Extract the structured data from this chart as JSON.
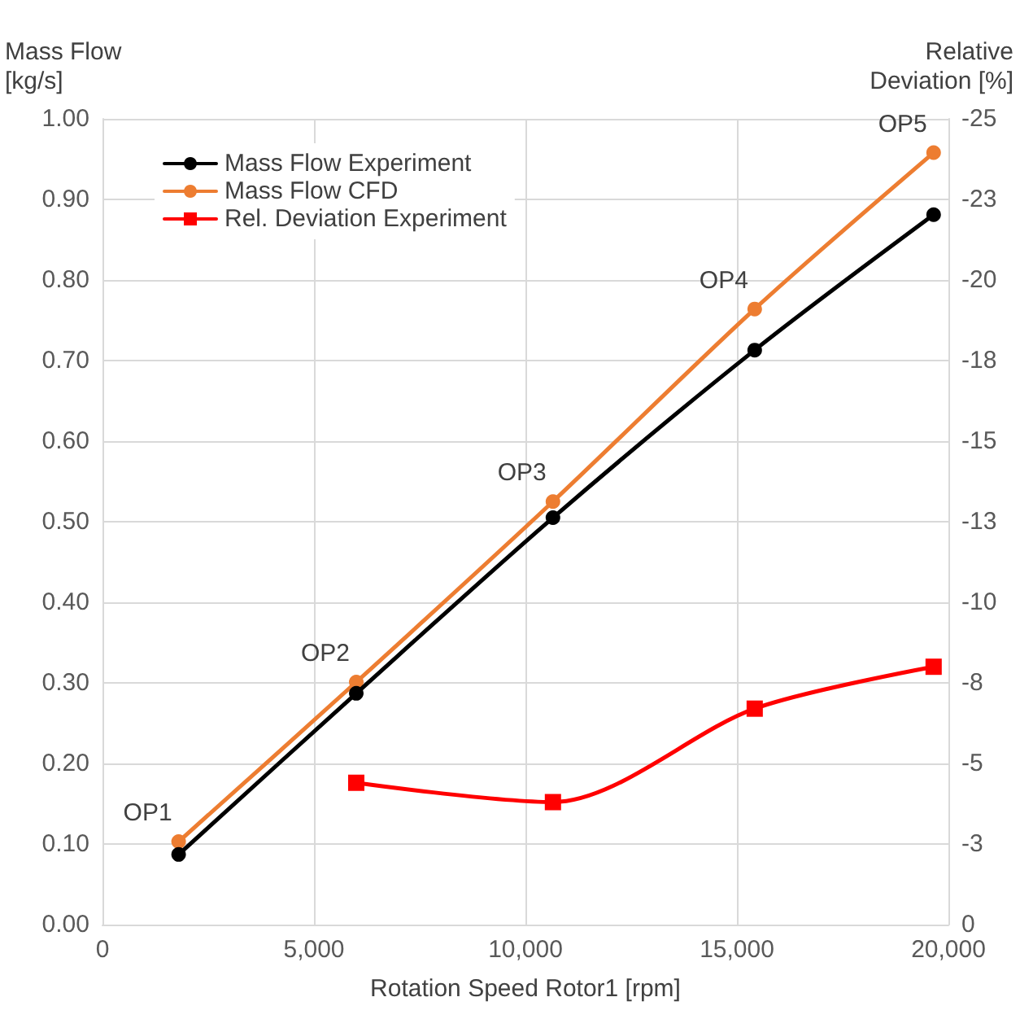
{
  "chart_data": {
    "type": "line",
    "xlabel": "Rotation Speed Rotor1 [rpm]",
    "ylabel": "Mass Flow\n[kg/s]",
    "y2label": "Relative\nDeviation [%]",
    "x": [
      1800,
      6000,
      10650,
      15420,
      19650
    ],
    "series": [
      {
        "name": "Mass Flow Experiment",
        "color": "#000000",
        "values": [
          0.087,
          0.287,
          0.505,
          0.713,
          0.881
        ]
      },
      {
        "name": "Mass Flow CFD",
        "color": "#ed7d31",
        "values": [
          0.103,
          0.301,
          0.525,
          0.764,
          0.958
        ]
      },
      {
        "name": "Rel. Deviation Experiment",
        "color": "#ff0000",
        "axis": "y2",
        "marker": "square",
        "x": [
          6000,
          10650,
          15420,
          19650
        ],
        "values": [
          -4.4,
          -3.8,
          -6.7,
          -8.0
        ]
      }
    ],
    "xlim": [
      0,
      20000
    ],
    "xticks": [
      {
        "value": 0,
        "label": "0"
      },
      {
        "value": 5000,
        "label": "5,000"
      },
      {
        "value": 10000,
        "label": "10,000"
      },
      {
        "value": 15000,
        "label": "15,000"
      },
      {
        "value": 20000,
        "label": "20,000"
      }
    ],
    "ylim": [
      0,
      1
    ],
    "yticks": [
      {
        "value": 0,
        "label": "0.00"
      },
      {
        "value": 0.1,
        "label": "0.10"
      },
      {
        "value": 0.2,
        "label": "0.20"
      },
      {
        "value": 0.3,
        "label": "0.30"
      },
      {
        "value": 0.4,
        "label": "0.40"
      },
      {
        "value": 0.5,
        "label": "0.50"
      },
      {
        "value": 0.6,
        "label": "0.60"
      },
      {
        "value": 0.7,
        "label": "0.70"
      },
      {
        "value": 0.8,
        "label": "0.80"
      },
      {
        "value": 0.9,
        "label": "0.90"
      },
      {
        "value": 1,
        "label": "1.00"
      }
    ],
    "y2lim": [
      0,
      -25
    ],
    "y2ticks": [
      0,
      {
        "value": -2.5,
        "label": "-3"
      },
      -5,
      {
        "value": -7.5,
        "label": "-8"
      },
      -10,
      {
        "value": -12.5,
        "label": "-13"
      },
      -15,
      {
        "value": -17.5,
        "label": "-18"
      },
      -20,
      {
        "value": -22.5,
        "label": "-23"
      },
      -25
    ],
    "annotations": [
      {
        "text": "OP1",
        "x": 1800,
        "y": 0.103
      },
      {
        "text": "OP2",
        "x": 6000,
        "y": 0.301
      },
      {
        "text": "OP3",
        "x": 10650,
        "y": 0.525
      },
      {
        "text": "OP4",
        "x": 15420,
        "y": 0.764
      },
      {
        "text": "OP5",
        "x": 19650,
        "y": 0.958
      }
    ],
    "grid": true,
    "legend": "top left",
    "marker": "circle",
    "line_style": "solid"
  }
}
